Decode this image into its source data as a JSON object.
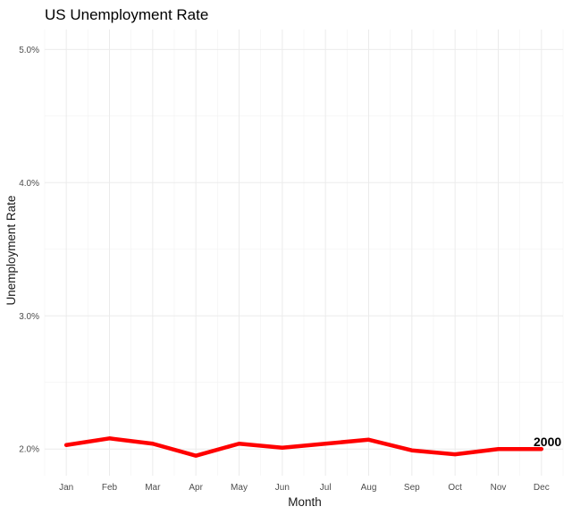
{
  "chart_data": {
    "type": "line",
    "title": "US Unemployment Rate",
    "xlabel": "Month",
    "ylabel": "Unemployment Rate",
    "categories": [
      "Jan",
      "Feb",
      "Mar",
      "Apr",
      "May",
      "Jun",
      "Jul",
      "Aug",
      "Sep",
      "Oct",
      "Nov",
      "Dec"
    ],
    "series": [
      {
        "name": "2000",
        "color": "#ff0000",
        "values": [
          2.03,
          2.08,
          2.04,
          1.95,
          2.04,
          2.01,
          2.04,
          2.07,
          1.99,
          1.96,
          2.0,
          2.0
        ]
      }
    ],
    "ylim": [
      1.8,
      5.15
    ],
    "y_ticks": [
      2.0,
      3.0,
      4.0,
      5.0
    ],
    "y_tick_labels": [
      "2.0%",
      "3.0%",
      "4.0%",
      "5.0%"
    ],
    "grid": true,
    "legend": "none",
    "end_label": "2000"
  }
}
